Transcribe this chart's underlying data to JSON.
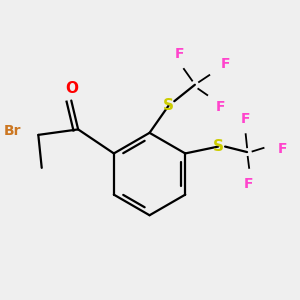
{
  "bg_color": "#efefef",
  "atom_colors": {
    "O": "#ff0000",
    "Br": "#cc7722",
    "S": "#cccc00",
    "F": "#ff44cc"
  },
  "bond_color": "#000000",
  "bond_width": 1.6
}
